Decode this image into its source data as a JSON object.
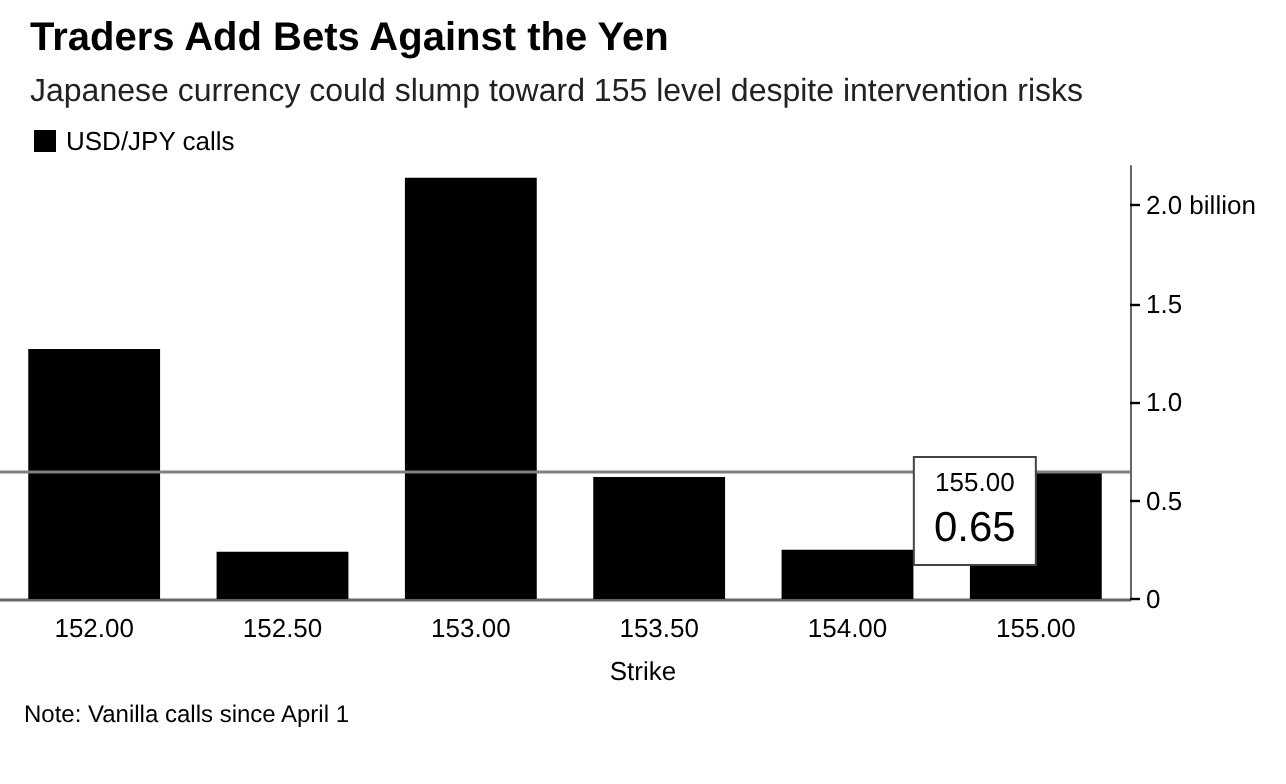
{
  "chart_data": {
    "type": "bar",
    "title": "Traders Add Bets Against the Yen",
    "subtitle": "Japanese currency could slump toward 155 level despite intervention risks",
    "xlabel": "Strike",
    "categories": [
      "152.00",
      "152.50",
      "153.00",
      "153.50",
      "154.00",
      "155.00"
    ],
    "series": [
      {
        "name": "USD/JPY calls",
        "color": "#000000",
        "values": [
          1.27,
          0.24,
          2.14,
          0.62,
          0.25,
          0.65
        ]
      }
    ],
    "ylim": [
      0,
      2.2
    ],
    "yticks": [
      0,
      0.5,
      {
        "value": 1,
        "label": "1.0"
      },
      1.5,
      {
        "value": 2,
        "label": "2.0 billion"
      }
    ],
    "grid": false,
    "legend": "top left",
    "ref_lines": [
      {
        "axis": "y",
        "value": 0.65,
        "color": "#808080"
      }
    ],
    "annotations": [
      {
        "text": "155.00",
        "x": "155.00",
        "y": 0.65
      },
      {
        "text": "0.65",
        "x": "155.00",
        "y": 0.65
      },
      "Note: Vanilla calls since April 1"
    ]
  }
}
